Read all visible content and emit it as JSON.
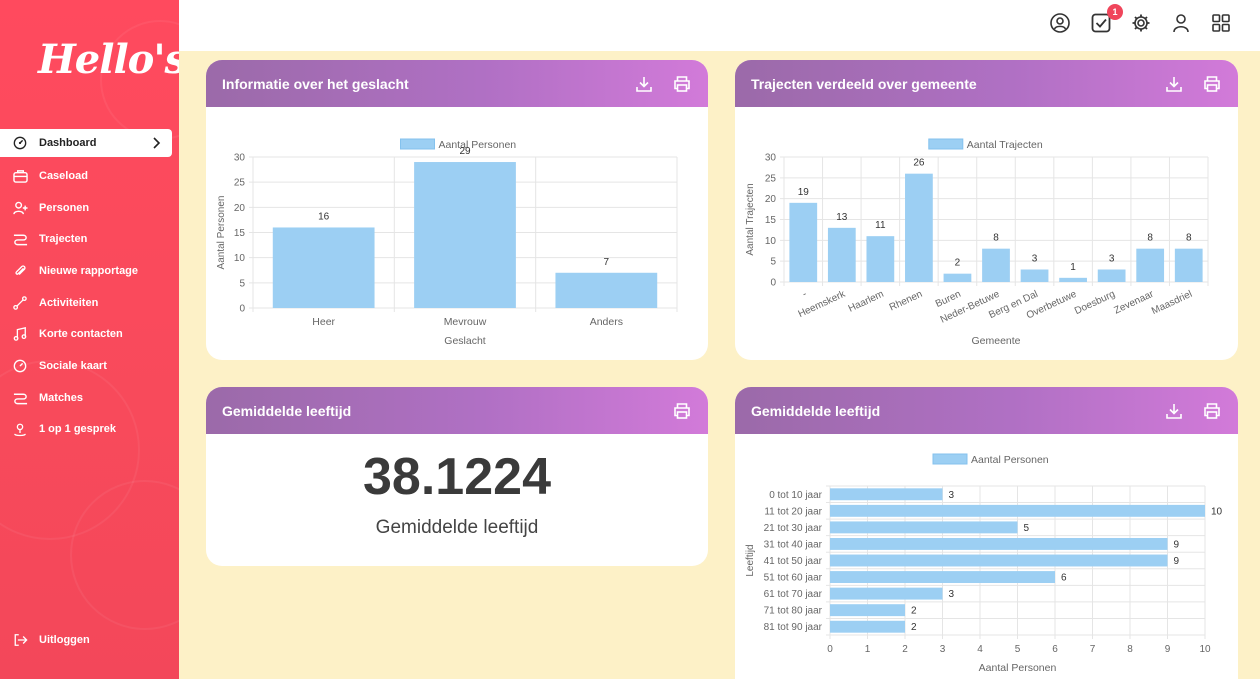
{
  "app": {
    "logo": "Hello's"
  },
  "sidebar": {
    "items": [
      {
        "label": "Dashboard",
        "icon": "gauge-icon",
        "active": true
      },
      {
        "label": "Caseload",
        "icon": "briefcase-icon"
      },
      {
        "label": "Personen",
        "icon": "user-plus-icon"
      },
      {
        "label": "Trajecten",
        "icon": "route-icon"
      },
      {
        "label": "Nieuwe rapportage",
        "icon": "paperclip-icon"
      },
      {
        "label": "Activiteiten",
        "icon": "activity-icon"
      },
      {
        "label": "Korte contacten",
        "icon": "music-icon"
      },
      {
        "label": "Sociale kaart",
        "icon": "map-gauge-icon"
      },
      {
        "label": "Matches",
        "icon": "route-icon"
      },
      {
        "label": "1 op 1 gesprek",
        "icon": "person-pin-icon"
      }
    ],
    "logout": {
      "label": "Uitloggen",
      "icon": "logout-icon"
    }
  },
  "topbar": {
    "tasks_badge": "1"
  },
  "cards": {
    "gender": {
      "title": "Informatie over het geslacht"
    },
    "municipality": {
      "title": "Trajecten verdeeld over gemeente"
    },
    "avg_age": {
      "title": "Gemiddelde leeftijd",
      "value": "38.1224",
      "label": "Gemiddelde leeftijd"
    },
    "age_dist": {
      "title": "Gemiddelde leeftijd"
    }
  },
  "colors": {
    "bar": "#9ccff3",
    "header_start": "#9b6aa9",
    "header_end": "#d27ad9",
    "sidebar": "#ff4a5e"
  },
  "chart_data": [
    {
      "type": "bar",
      "categories": [
        "Heer",
        "Mevrouw",
        "Anders"
      ],
      "series": [
        {
          "name": "Aantal Personen",
          "values": [
            16,
            29,
            7
          ]
        }
      ],
      "xlabel": "Geslacht",
      "ylabel": "Aantal Personen",
      "ylim": [
        0,
        30
      ],
      "yticks": [
        0,
        5,
        10,
        15,
        20,
        25,
        30
      ]
    },
    {
      "type": "bar",
      "categories": [
        "-",
        "Heemskerk",
        "Haarlem",
        "Rhenen",
        "Buren",
        "Neder-Betuwe",
        "Berg en Dal",
        "Overbetuwe",
        "Doesburg",
        "Zevenaar",
        "Maasdriel"
      ],
      "series": [
        {
          "name": "Aantal Trajecten",
          "values": [
            19,
            13,
            11,
            26,
            2,
            8,
            3,
            1,
            3,
            8,
            8
          ]
        }
      ],
      "xlabel": "Gemeente",
      "ylabel": "Aantal Trajecten",
      "ylim": [
        0,
        30
      ],
      "yticks": [
        0,
        5,
        10,
        15,
        20,
        25,
        30
      ]
    },
    {
      "type": "bar",
      "orientation": "horizontal",
      "categories": [
        "0 tot 10 jaar",
        "11 tot 20 jaar",
        "21 tot 30 jaar",
        "31 tot 40 jaar",
        "41 tot 50 jaar",
        "51 tot 60 jaar",
        "61 tot 70 jaar",
        "71 tot 80 jaar",
        "81 tot 90 jaar"
      ],
      "series": [
        {
          "name": "Aantal Personen",
          "values": [
            3,
            10,
            5,
            9,
            9,
            6,
            3,
            2,
            2
          ]
        }
      ],
      "xlabel": "Aantal Personen",
      "ylabel": "Leeftijd",
      "xlim": [
        0,
        10
      ],
      "xticks": [
        0,
        1,
        2,
        3,
        4,
        5,
        6,
        7,
        8,
        9,
        10
      ]
    }
  ]
}
